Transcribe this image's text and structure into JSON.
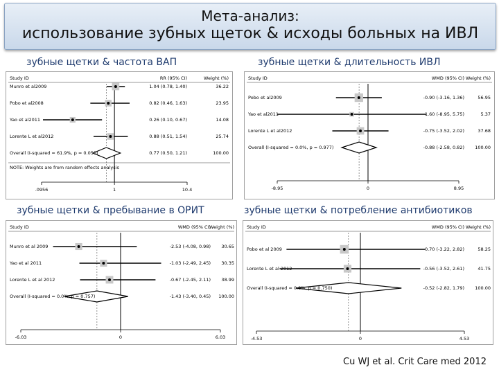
{
  "title": {
    "line1": "Мета-анализ:",
    "line2": "использование зубных щеток & исходы больных на ИВЛ"
  },
  "footer": "Cu WJ et al. Crit Care med 2012",
  "chart_data": [
    {
      "type": "forest",
      "caption": "зубные щетки & частота ВАП",
      "header": {
        "study": "Study   ID",
        "effect": "RR (95% CI)",
        "weight": "Weight (%)"
      },
      "scale": "log",
      "xlim": [
        0.0956,
        10.4
      ],
      "ticks": [
        {
          "value": 0.0956,
          "label": ".0956"
        },
        {
          "value": 1,
          "label": "1"
        },
        {
          "value": 10.4,
          "label": "10.4"
        }
      ],
      "null_value": 1,
      "studies": [
        {
          "label": "Munro et al2009",
          "est": 1.04,
          "lo": 0.78,
          "hi": 1.4,
          "ci_text": "1.04 (0.78, 1.40)",
          "weight": "36.22"
        },
        {
          "label": "Pobo et al2008",
          "est": 0.82,
          "lo": 0.46,
          "hi": 1.63,
          "ci_text": "0.82 (0.46, 1.63)",
          "weight": "23.95"
        },
        {
          "label": "Yao et al2011",
          "est": 0.26,
          "lo": 0.1,
          "hi": 0.67,
          "ci_text": "0.26 (0.10, 0.67)",
          "weight": "14.08"
        },
        {
          "label": "Lorente L et al2012",
          "est": 0.88,
          "lo": 0.51,
          "hi": 1.54,
          "ci_text": "0.88 (0.51, 1.54)",
          "weight": "25.74"
        }
      ],
      "overall": {
        "label": "Overall  (I-squared = 61.9%, p = 0.050)",
        "est": 0.77,
        "lo": 0.5,
        "hi": 1.21,
        "ci_text": "0.77 (0.50, 1.21)",
        "weight": "100.00"
      },
      "note": "NOTE: Weights are from random effects analysis"
    },
    {
      "type": "forest",
      "caption": "зубные щетки & длительность ИВЛ",
      "header": {
        "study": "Study   ID",
        "effect": "WMD (95% CI)",
        "weight": "Weight (%)"
      },
      "scale": "linear",
      "xlim": [
        -8.95,
        8.95
      ],
      "ticks": [
        {
          "value": -8.95,
          "label": "-8.95"
        },
        {
          "value": 0,
          "label": "0"
        },
        {
          "value": 8.95,
          "label": "8.95"
        }
      ],
      "null_value": 0,
      "studies": [
        {
          "label": "Pobo et al2009",
          "est": -0.9,
          "lo": -3.16,
          "hi": 1.36,
          "ci_text": "-0.90 (-3.16, 1.36)",
          "weight": "56.95"
        },
        {
          "label": "Yao et al2011",
          "est": -1.6,
          "lo": -8.95,
          "hi": 5.75,
          "ci_text": "-1.60 (-8.95, 5.75)",
          "weight": "5.37"
        },
        {
          "label": "Lorente L et al2012",
          "est": -0.75,
          "lo": -3.52,
          "hi": 2.02,
          "ci_text": "-0.75 (-3.52, 2.02)",
          "weight": "37.68"
        }
      ],
      "overall": {
        "label": "Overall  (I-squared = 0.0%, p = 0.977)",
        "est": -0.88,
        "lo": -2.58,
        "hi": 0.82,
        "ci_text": "-0.88 (-2.58, 0.82)",
        "weight": "100.00"
      },
      "note": ""
    },
    {
      "type": "forest",
      "caption": "зубные щетки & пребывание в ОРИТ",
      "header": {
        "study": "Study   ID",
        "effect": "WMD (95% CI)",
        "weight": "Weight (%)"
      },
      "scale": "linear",
      "xlim": [
        -6.03,
        6.03
      ],
      "ticks": [
        {
          "value": -6.03,
          "label": "-6.03"
        },
        {
          "value": 0,
          "label": "0"
        },
        {
          "value": 6.03,
          "label": "6.03"
        }
      ],
      "null_value": 0,
      "studies": [
        {
          "label": "Munro et al 2009",
          "est": -2.53,
          "lo": -4.08,
          "hi": 0.98,
          "ci_text": "-2.53 (-4.08, 0.98)",
          "weight": "30.65"
        },
        {
          "label": "Yao et al 2011",
          "est": -1.03,
          "lo": -2.49,
          "hi": 2.45,
          "ci_text": "-1.03 (-2.49, 2.45)",
          "weight": "30.35"
        },
        {
          "label": "Lorente L et al 2012",
          "est": -0.67,
          "lo": -2.45,
          "hi": 2.11,
          "ci_text": "-0.67 (-2.45, 2.11)",
          "weight": "38.99"
        }
      ],
      "overall": {
        "label": "Overall  (I-squared = 0.0%, p = 0.757)",
        "est": -1.43,
        "lo": -3.4,
        "hi": 0.45,
        "ci_text": "-1.43 (-3.40, 0.45)",
        "weight": "100.00"
      },
      "note": ""
    },
    {
      "type": "forest",
      "caption": "зубные щетки & потребление антибиотиков",
      "header": {
        "study": "Study   ID",
        "effect": "WMD (95% CI)",
        "weight": "Weight (%)"
      },
      "scale": "linear",
      "xlim": [
        -4.53,
        4.53
      ],
      "ticks": [
        {
          "value": -4.53,
          "label": "-4.53"
        },
        {
          "value": 0,
          "label": "0"
        },
        {
          "value": 4.53,
          "label": "4.53"
        }
      ],
      "null_value": 0,
      "studies": [
        {
          "label": "Pobo et al 2009",
          "est": -0.7,
          "lo": -3.22,
          "hi": 2.82,
          "ci_text": "-0.70 (-3.22, 2.82)",
          "weight": "58.25"
        },
        {
          "label": "Lorente L et al 2012",
          "est": -0.56,
          "lo": -3.52,
          "hi": 2.61,
          "ci_text": "-0.56 (-3.52, 2.61)",
          "weight": "41.75"
        }
      ],
      "overall": {
        "label": "Overall  (I-squared = 0.0%, p = 0.750)",
        "est": -0.52,
        "lo": -2.82,
        "hi": 1.79,
        "ci_text": "-0.52 (-2.82, 1.79)",
        "weight": "100.00"
      },
      "note": ""
    }
  ]
}
